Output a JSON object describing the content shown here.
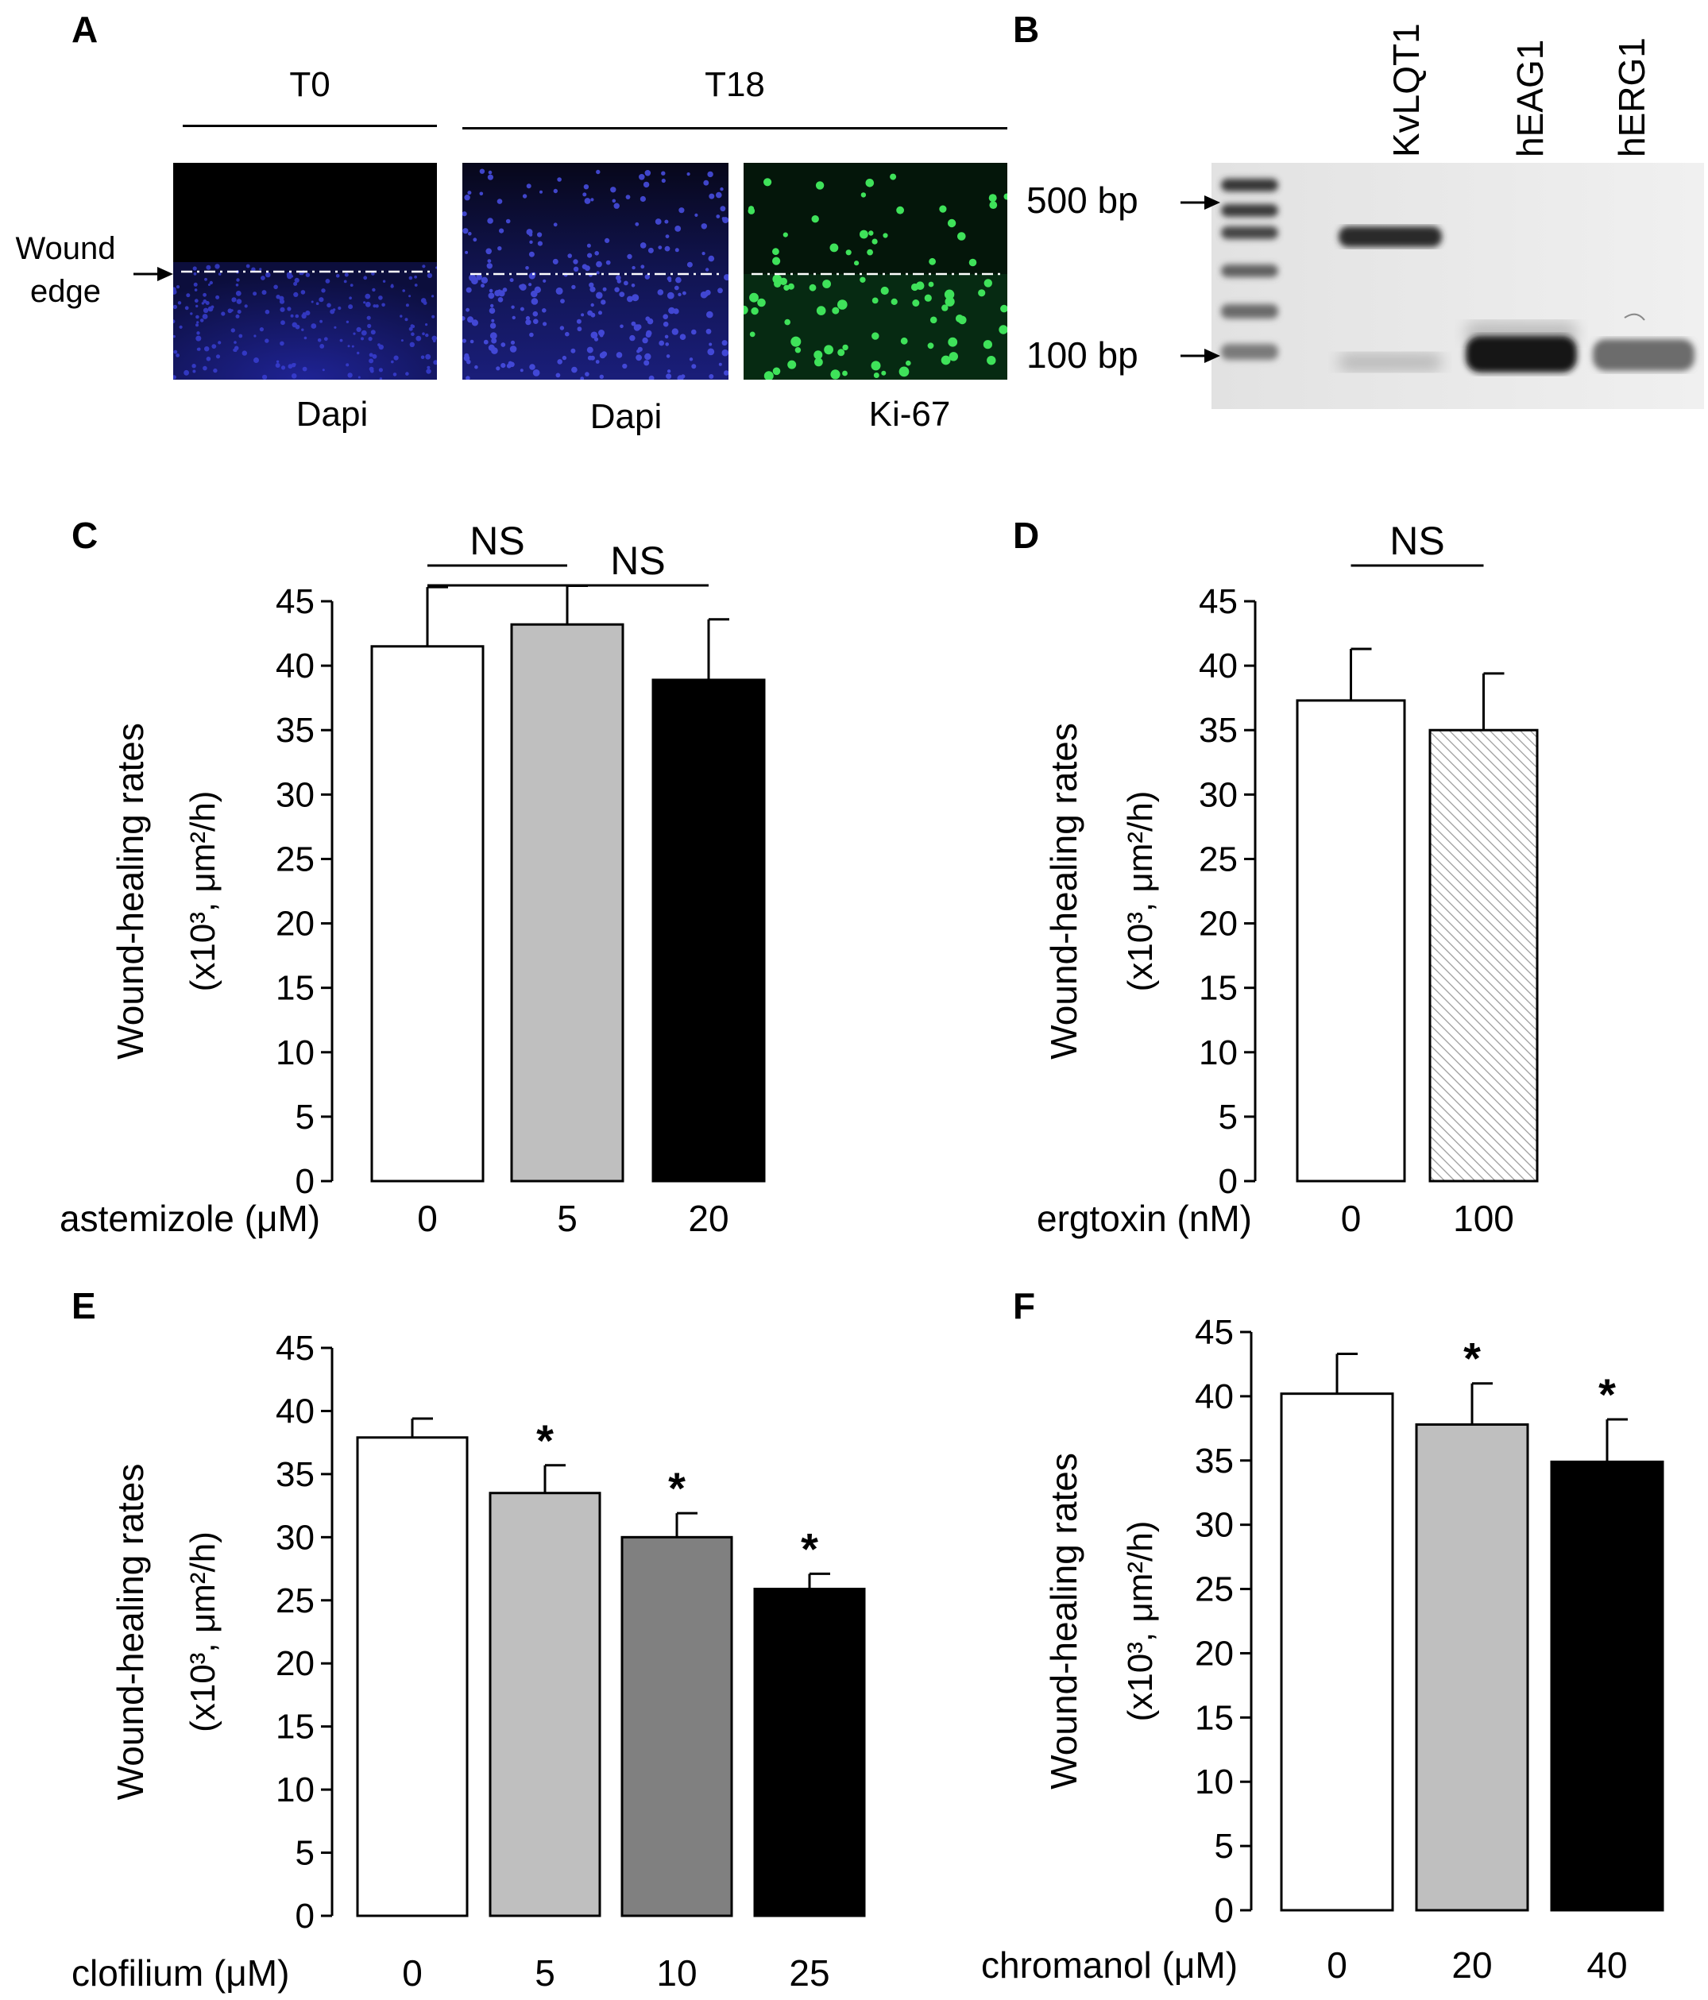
{
  "panel_a": {
    "letter": "A",
    "t0_header": "T0",
    "t18_header": "T18",
    "wound_label_line1": "Wound",
    "wound_label_line2": "edge",
    "captions": [
      "Dapi",
      "Dapi",
      "Ki-67"
    ],
    "colors": {
      "dapi": "#2a2fb8",
      "ki67": "#2fd84a",
      "background": "#050508"
    }
  },
  "panel_b": {
    "letter": "B",
    "ladder_labels": [
      "500 bp",
      "100 bp"
    ],
    "lanes": [
      "KvLQT1",
      "hEAG1",
      "hERG1"
    ]
  },
  "y_axis_label_line1": "Wound-healing rates",
  "y_axis_label_line2": "(x10³, μm²/h)",
  "chart_data": [
    {
      "panel": "C",
      "type": "bar",
      "xlabel": "astemizole (μM)",
      "categories": [
        "0",
        "5",
        "20"
      ],
      "values": [
        41.5,
        43.2,
        38.9
      ],
      "errors": [
        4.6,
        3.0,
        4.7
      ],
      "colors": [
        "#ffffff",
        "#bfbfbf",
        "#000000"
      ],
      "ylim": [
        0,
        45
      ],
      "yticks": [
        0,
        5,
        10,
        15,
        20,
        25,
        30,
        35,
        40,
        45
      ],
      "annotations": [
        {
          "text": "NS",
          "from": 0,
          "to": 1,
          "level": 1
        },
        {
          "text": "NS",
          "from": 0,
          "to": 2,
          "level": 0
        }
      ]
    },
    {
      "panel": "D",
      "type": "bar",
      "xlabel": "ergtoxin (nM)",
      "categories": [
        "0",
        "100"
      ],
      "values": [
        37.3,
        35.0
      ],
      "errors": [
        4.0,
        4.4
      ],
      "colors": [
        "#ffffff",
        "hatched"
      ],
      "ylim": [
        0,
        45
      ],
      "yticks": [
        0,
        5,
        10,
        15,
        20,
        25,
        30,
        35,
        40,
        45
      ],
      "annotations": [
        {
          "text": "NS",
          "from": 0,
          "to": 1,
          "level": 1
        }
      ]
    },
    {
      "panel": "E",
      "type": "bar",
      "xlabel": "clofilium (μM)",
      "categories": [
        "0",
        "5",
        "10",
        "25"
      ],
      "values": [
        37.9,
        33.5,
        30.0,
        25.9
      ],
      "errors": [
        1.5,
        2.2,
        1.9,
        1.2
      ],
      "colors": [
        "#ffffff",
        "#bfbfbf",
        "#808080",
        "#000000"
      ],
      "significance": [
        "",
        "*",
        "*",
        "*"
      ],
      "ylim": [
        0,
        45
      ],
      "yticks": [
        0,
        5,
        10,
        15,
        20,
        25,
        30,
        35,
        40,
        45
      ]
    },
    {
      "panel": "F",
      "type": "bar",
      "xlabel": "chromanol (μM)",
      "categories": [
        "0",
        "20",
        "40"
      ],
      "values": [
        40.2,
        37.8,
        34.9
      ],
      "errors": [
        3.1,
        3.2,
        3.3
      ],
      "colors": [
        "#ffffff",
        "#bfbfbf",
        "#000000"
      ],
      "significance": [
        "",
        "*",
        "*"
      ],
      "ylim": [
        0,
        45
      ],
      "yticks": [
        0,
        5,
        10,
        15,
        20,
        25,
        30,
        35,
        40,
        45
      ]
    }
  ]
}
